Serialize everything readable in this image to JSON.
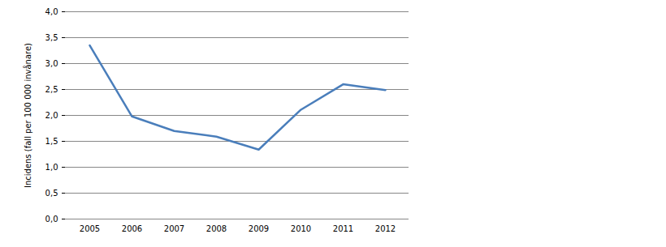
{
  "chart_data": {
    "type": "line",
    "y_label": "Incidens (fall per 100 000 invånare)",
    "categories": [
      "2005",
      "2006",
      "2007",
      "2008",
      "2009",
      "2010",
      "2011",
      "2012"
    ],
    "values": [
      3.35,
      1.98,
      1.7,
      1.59,
      1.34,
      2.11,
      2.6,
      2.49
    ],
    "color": "#4a7ebb",
    "ylim": [
      0,
      4
    ],
    "yticks": [
      {
        "value": 0,
        "label": "0,0"
      },
      {
        "value": 0.5,
        "label": "0,5"
      },
      {
        "value": 1,
        "label": "1,0"
      },
      {
        "value": 1.5,
        "label": "1,5"
      },
      {
        "value": 2,
        "label": "2,0"
      },
      {
        "value": 2.5,
        "label": "2,5"
      },
      {
        "value": 3,
        "label": "3,0"
      },
      {
        "value": 3.5,
        "label": "3,5"
      },
      {
        "value": 4,
        "label": "4,0"
      }
    ],
    "grid": true
  }
}
